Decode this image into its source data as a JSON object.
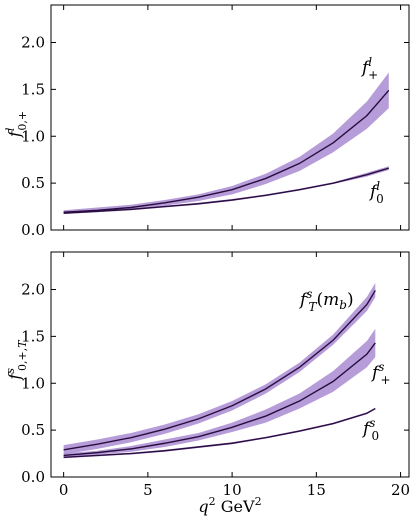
{
  "figure": {
    "xlabel": "q² GeV²",
    "x_tick_labels": [
      "0",
      "5",
      "10",
      "15",
      "20"
    ],
    "y_tick_labels": [
      "0.0",
      "0.5",
      "1.0",
      "1.5",
      "2.0"
    ],
    "colors": {
      "band": "#a98bd1",
      "central": "#2a0d40"
    }
  },
  "chart_data": [
    {
      "type": "line",
      "panel": "top",
      "ylabel": "fˡ₀,₊",
      "xlim": [
        -0.75,
        20.5
      ],
      "ylim": [
        0,
        2.4
      ],
      "x_ticks": [
        0,
        5,
        10,
        15,
        20
      ],
      "y_ticks": [
        0,
        0.5,
        1.0,
        1.5,
        2.0
      ],
      "x_tick_labels_visible": false,
      "series": [
        {
          "name": "fˡ₊",
          "x": [
            0,
            2,
            4,
            6,
            8,
            10,
            12,
            14,
            16,
            18,
            19.3
          ],
          "values": [
            0.19,
            0.21,
            0.24,
            0.29,
            0.35,
            0.43,
            0.55,
            0.71,
            0.93,
            1.22,
            1.49
          ],
          "band_upper": [
            0.21,
            0.24,
            0.27,
            0.32,
            0.38,
            0.47,
            0.6,
            0.78,
            1.03,
            1.37,
            1.68
          ],
          "band_lower": [
            0.17,
            0.19,
            0.22,
            0.26,
            0.31,
            0.38,
            0.49,
            0.63,
            0.83,
            1.08,
            1.3
          ]
        },
        {
          "name": "fˡ₀",
          "x": [
            0,
            2,
            4,
            6,
            8,
            10,
            12,
            14,
            16,
            18,
            19.3
          ],
          "values": [
            0.18,
            0.2,
            0.22,
            0.25,
            0.28,
            0.32,
            0.37,
            0.43,
            0.5,
            0.59,
            0.66
          ],
          "band_upper": [
            0.19,
            0.21,
            0.23,
            0.26,
            0.29,
            0.33,
            0.38,
            0.44,
            0.51,
            0.61,
            0.68
          ],
          "band_lower": [
            0.17,
            0.19,
            0.21,
            0.24,
            0.27,
            0.31,
            0.36,
            0.42,
            0.49,
            0.57,
            0.64
          ]
        }
      ]
    },
    {
      "type": "line",
      "panel": "bottom",
      "ylabel": "fˢ₀,₊,T",
      "xlabel": "q² GeV²",
      "xlim": [
        -0.75,
        20.5
      ],
      "ylim": [
        0,
        2.4
      ],
      "x_ticks": [
        0,
        5,
        10,
        15,
        20
      ],
      "y_ticks": [
        0,
        0.5,
        1.0,
        1.5,
        2.0
      ],
      "series": [
        {
          "name": "fˢT(mb)",
          "x": [
            0,
            2,
            4,
            6,
            8,
            10,
            12,
            14,
            16,
            18,
            18.5
          ],
          "values": [
            0.29,
            0.35,
            0.42,
            0.51,
            0.62,
            0.76,
            0.94,
            1.17,
            1.46,
            1.84,
            1.99
          ],
          "band_upper": [
            0.34,
            0.4,
            0.47,
            0.56,
            0.67,
            0.81,
            0.99,
            1.22,
            1.52,
            1.92,
            2.07
          ],
          "band_lower": [
            0.24,
            0.3,
            0.37,
            0.46,
            0.57,
            0.71,
            0.89,
            1.12,
            1.41,
            1.77,
            1.92
          ]
        },
        {
          "name": "fˢ₊",
          "x": [
            0,
            2,
            4,
            6,
            8,
            10,
            12,
            14,
            16,
            18,
            18.5
          ],
          "values": [
            0.23,
            0.26,
            0.3,
            0.36,
            0.43,
            0.53,
            0.65,
            0.81,
            1.02,
            1.31,
            1.43
          ],
          "band_upper": [
            0.25,
            0.28,
            0.33,
            0.4,
            0.47,
            0.58,
            0.72,
            0.89,
            1.13,
            1.45,
            1.58
          ],
          "band_lower": [
            0.21,
            0.24,
            0.27,
            0.32,
            0.39,
            0.48,
            0.58,
            0.73,
            0.91,
            1.17,
            1.28
          ]
        },
        {
          "name": "fˢ₀",
          "x": [
            0,
            2,
            4,
            6,
            8,
            10,
            12,
            14,
            16,
            18,
            18.5
          ],
          "values": [
            0.21,
            0.23,
            0.25,
            0.28,
            0.32,
            0.36,
            0.42,
            0.49,
            0.57,
            0.68,
            0.73
          ],
          "band_upper": [
            0.22,
            0.24,
            0.26,
            0.29,
            0.33,
            0.37,
            0.43,
            0.5,
            0.58,
            0.69,
            0.74
          ],
          "band_lower": [
            0.2,
            0.22,
            0.24,
            0.27,
            0.31,
            0.35,
            0.41,
            0.48,
            0.56,
            0.67,
            0.72
          ]
        }
      ]
    }
  ]
}
